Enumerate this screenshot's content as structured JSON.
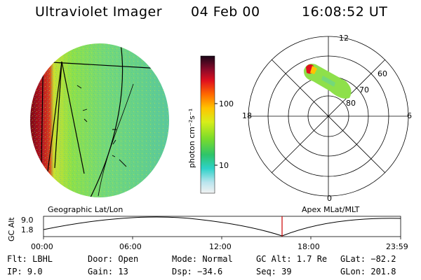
{
  "header": {
    "title": "Ultraviolet Imager",
    "date": "04 Feb 00",
    "time": "16:08:52 UT"
  },
  "colorbar": {
    "label": "photon cm⁻²s⁻¹",
    "ticks": [
      "100",
      "10"
    ]
  },
  "polar_plot": {
    "labels": {
      "top": "12",
      "bottom": "0",
      "left": "18",
      "right": "6",
      "lat60": "60",
      "lat70": "70",
      "lat80": "80"
    }
  },
  "strip": {
    "left_label": "Geographic Lat/Lon",
    "right_label": "Apex MLat/MLT",
    "y_label": "GC Alt",
    "y_ticks": [
      "9.0",
      "1.8"
    ],
    "x_ticks": [
      "00:00",
      "06:00",
      "12:00",
      "18:00",
      "23:59"
    ],
    "marker_color": "#cc0000"
  },
  "info": {
    "row1": {
      "flt": "Flt: LBHL",
      "door": "Door: Open",
      "mode": "Mode: Normal",
      "gcalt": "GC Alt: 1.7 Re",
      "glat": "GLat: −82.2"
    },
    "row2": {
      "ip": "IP:  9.0",
      "gain": "Gain: 13",
      "dsp": "Dsp:  −34.6",
      "seq": "Seq: 39",
      "glon": "GLon: 201.8"
    }
  }
}
